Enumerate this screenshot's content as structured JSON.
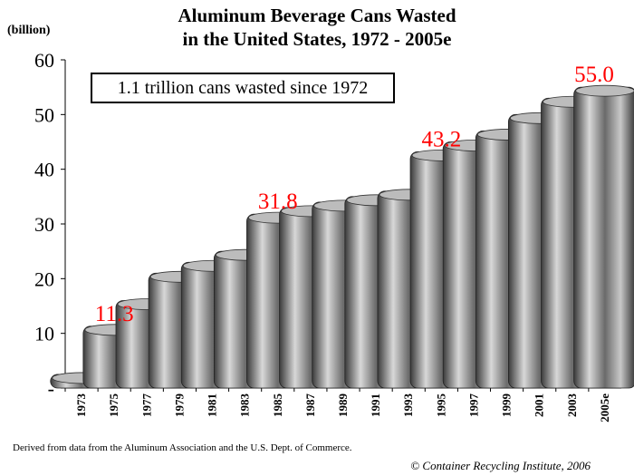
{
  "chart_data": {
    "type": "area",
    "title_line1": "Aluminum Beverage Cans Wasted",
    "title_line2": "in the United States, 1972 - 2005e",
    "ylabel": "(billion)",
    "ylim": [
      0,
      60
    ],
    "y_ticks": [
      "-",
      "10",
      "20",
      "30",
      "40",
      "50",
      "60"
    ],
    "categories": [
      "1973",
      "1975",
      "1977",
      "1979",
      "1981",
      "1983",
      "1985",
      "1987",
      "1989",
      "1991",
      "1993",
      "1995",
      "1997",
      "1999",
      "2001",
      "2003",
      "2005e"
    ],
    "values": [
      2.5,
      11.3,
      16,
      21,
      23,
      25,
      31.8,
      33,
      34,
      35,
      36,
      43.2,
      45,
      47,
      50,
      53,
      55.0
    ],
    "data_labels": [
      {
        "category": "1975",
        "text": "11.3",
        "value": 11.3
      },
      {
        "category": "1985",
        "text": "31.8",
        "value": 31.8
      },
      {
        "category": "1995",
        "text": "43.2",
        "value": 43.2
      },
      {
        "category": "2005e",
        "text": "55.0",
        "value": 55.0
      }
    ],
    "annotation": "1.1 trillion cans wasted since 1972",
    "label_color": "#ff0000",
    "grid": false
  },
  "footer": {
    "source": "Derived from data from the Aluminum Association and the U.S. Dept. of Commerce.",
    "copyright": "© Container Recycling Institute, 2006"
  }
}
